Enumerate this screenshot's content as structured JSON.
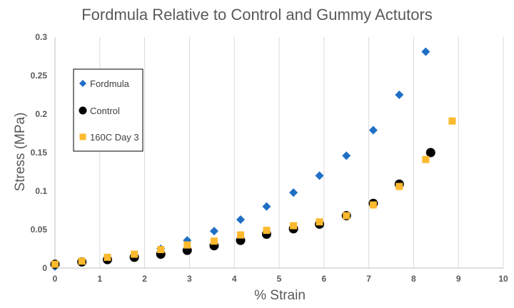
{
  "chart_data": {
    "type": "scatter",
    "title": "Fordmula Relative to Control and Gummy Actutors",
    "xlabel": "% Strain",
    "ylabel": "Stress (MPa)",
    "xlim": [
      0,
      10
    ],
    "ylim": [
      0,
      0.3
    ],
    "x_ticks": [
      "0",
      "1",
      "2",
      "3",
      "4",
      "5",
      "6",
      "7",
      "8",
      "9",
      "10"
    ],
    "y_ticks": [
      "0",
      "0.05",
      "0.1",
      "0.15",
      "0.2",
      "0.25",
      "0.3"
    ],
    "grid": "vertical",
    "legend_position": "left",
    "series": [
      {
        "name": "Fordmula",
        "marker": "diamond",
        "color": "#1f6fc5",
        "x": [
          0,
          0.6,
          1.17,
          1.77,
          2.36,
          2.95,
          3.55,
          4.14,
          4.72,
          5.32,
          5.9,
          6.5,
          7.1,
          7.68,
          8.27
        ],
        "y": [
          0.002,
          0.008,
          0.012,
          0.017,
          0.025,
          0.036,
          0.048,
          0.063,
          0.08,
          0.098,
          0.12,
          0.146,
          0.179,
          0.225,
          0.281
        ]
      },
      {
        "name": "Control",
        "marker": "circle",
        "color": "#000000",
        "x": [
          0,
          0.6,
          1.17,
          1.77,
          2.36,
          2.95,
          3.55,
          4.14,
          4.72,
          5.32,
          5.9,
          6.5,
          7.1,
          7.68,
          8.38
        ],
        "y": [
          0.005,
          0.008,
          0.011,
          0.014,
          0.018,
          0.023,
          0.029,
          0.036,
          0.044,
          0.051,
          0.057,
          0.068,
          0.084,
          0.109,
          0.15
        ]
      },
      {
        "name": "160C Day 3",
        "marker": "square",
        "color": "#fbb92d",
        "x": [
          0,
          0.6,
          1.17,
          1.77,
          2.36,
          2.95,
          3.55,
          4.14,
          4.72,
          5.32,
          5.9,
          6.5,
          7.1,
          7.68,
          8.27,
          8.86
        ],
        "y": [
          0.005,
          0.009,
          0.014,
          0.018,
          0.024,
          0.03,
          0.035,
          0.043,
          0.049,
          0.055,
          0.06,
          0.068,
          0.082,
          0.106,
          0.141,
          0.191
        ]
      }
    ]
  }
}
